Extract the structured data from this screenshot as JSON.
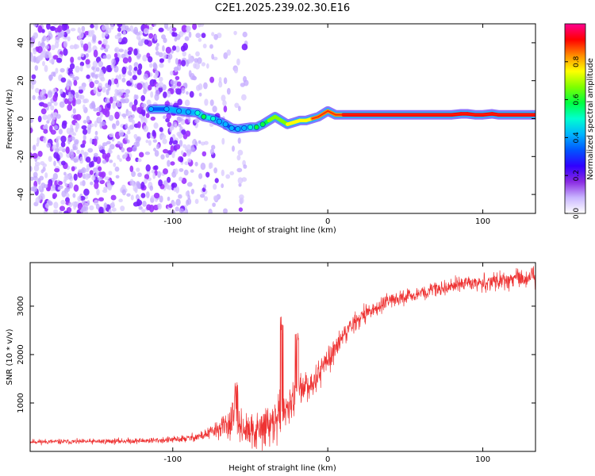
{
  "figure": {
    "title": "C2E1.2025.239.02.30.E16"
  },
  "chart_data": [
    {
      "type": "heatmap",
      "panel": "spectrogram",
      "title": "C2E1.2025.239.02.30.E16",
      "xlabel": "Height of straight line (km)",
      "ylabel": "Frequency (Hz)",
      "xlim": [
        -192,
        134
      ],
      "ylim": [
        -50,
        50
      ],
      "xticks": [
        -100,
        0,
        100
      ],
      "yticks": [
        -40,
        -20,
        0,
        20,
        40
      ],
      "colorbar": {
        "label": "Normalized spectral amplitude",
        "range": [
          0,
          1
        ],
        "ticks": [
          "0.0",
          "0.2",
          "0.4",
          "0.6",
          "0.8"
        ],
        "colors": [
          "#ffffff",
          "#c9b6ff",
          "#8a2be2",
          "#3000ff",
          "#0055ff",
          "#00b4ff",
          "#00ffd0",
          "#00ff40",
          "#7fff00",
          "#ffff00",
          "#ff8c00",
          "#ff0000",
          "#ff0090"
        ]
      },
      "ridge": {
        "name": "signal carrier",
        "x": [
          -114,
          -104,
          -96,
          -90,
          -84,
          -80,
          -74,
          -70,
          -66,
          -62,
          -58,
          -54,
          -50,
          -46,
          -42,
          -38,
          -34,
          -30,
          -26,
          -22,
          -18,
          -14,
          -10,
          -6,
          -2,
          0,
          5,
          10,
          20,
          30,
          40,
          50,
          60,
          70,
          80,
          86,
          90,
          95,
          100,
          106,
          110,
          120,
          134
        ],
        "y": [
          5,
          5,
          4,
          3.5,
          3,
          1,
          0,
          -1.5,
          -3,
          -5,
          -5.5,
          -5,
          -4.5,
          -4.5,
          -3,
          -1,
          1,
          -1,
          -3,
          -2,
          -1,
          -1,
          0,
          1,
          3,
          4,
          2,
          2,
          2,
          2,
          2,
          2,
          2,
          2,
          2,
          2.5,
          2.5,
          2,
          2,
          2.5,
          2,
          2,
          2
        ],
        "amplitude": [
          0.35,
          0.35,
          0.4,
          0.4,
          0.45,
          0.5,
          0.45,
          0.4,
          0.35,
          0.35,
          0.35,
          0.4,
          0.45,
          0.5,
          0.55,
          0.6,
          0.65,
          0.7,
          0.7,
          0.75,
          0.75,
          0.75,
          0.8,
          0.8,
          0.8,
          0.8,
          0.85,
          0.85,
          0.9,
          0.9,
          0.9,
          0.9,
          0.9,
          0.9,
          0.95,
          0.95,
          0.95,
          0.9,
          0.9,
          0.9,
          0.9,
          0.9,
          0.9
        ]
      },
      "noise_extent_x": [
        -192,
        -52
      ]
    },
    {
      "type": "line",
      "panel": "snr",
      "xlabel": "Height of straight line (km)",
      "ylabel": "SNR (10 * v/v)",
      "xlim": [
        -192,
        134
      ],
      "ylim": [
        0,
        3900
      ],
      "xticks": [
        -100,
        0,
        100
      ],
      "yticks": [
        1000,
        2000,
        3000
      ],
      "series": [
        {
          "name": "SNR",
          "color": "#ee3333",
          "envelope_x": [
            -192,
            -160,
            -120,
            -100,
            -90,
            -80,
            -75,
            -70,
            -65,
            -62,
            -60,
            -58,
            -55,
            -50,
            -45,
            -40,
            -35,
            -30,
            -25,
            -20,
            -15,
            -10,
            -5,
            0,
            5,
            10,
            15,
            20,
            25,
            30,
            40,
            50,
            60,
            70,
            80,
            90,
            100,
            110,
            120,
            134
          ],
          "envelope_y": [
            200,
            200,
            220,
            240,
            270,
            330,
            400,
            470,
            550,
            620,
            700,
            600,
            480,
            380,
            400,
            500,
            600,
            750,
            950,
            1150,
            1300,
            1450,
            1650,
            1900,
            2150,
            2400,
            2600,
            2750,
            2850,
            2950,
            3100,
            3200,
            3280,
            3350,
            3420,
            3480,
            3500,
            3540,
            3560,
            3570
          ],
          "noise_std": [
            40,
            40,
            45,
            50,
            60,
            80,
            120,
            150,
            200,
            280,
            350,
            260,
            220,
            260,
            320,
            350,
            350,
            320,
            300,
            280,
            260,
            240,
            220,
            200,
            180,
            160,
            150,
            140,
            130,
            120,
            110,
            110,
            110,
            110,
            120,
            130,
            140,
            150,
            150,
            150
          ],
          "peaks": [
            {
              "x": -59,
              "y": 1450
            },
            {
              "x": -30,
              "y": 2800
            },
            {
              "x": -20,
              "y": 2450
            }
          ]
        }
      ]
    }
  ]
}
